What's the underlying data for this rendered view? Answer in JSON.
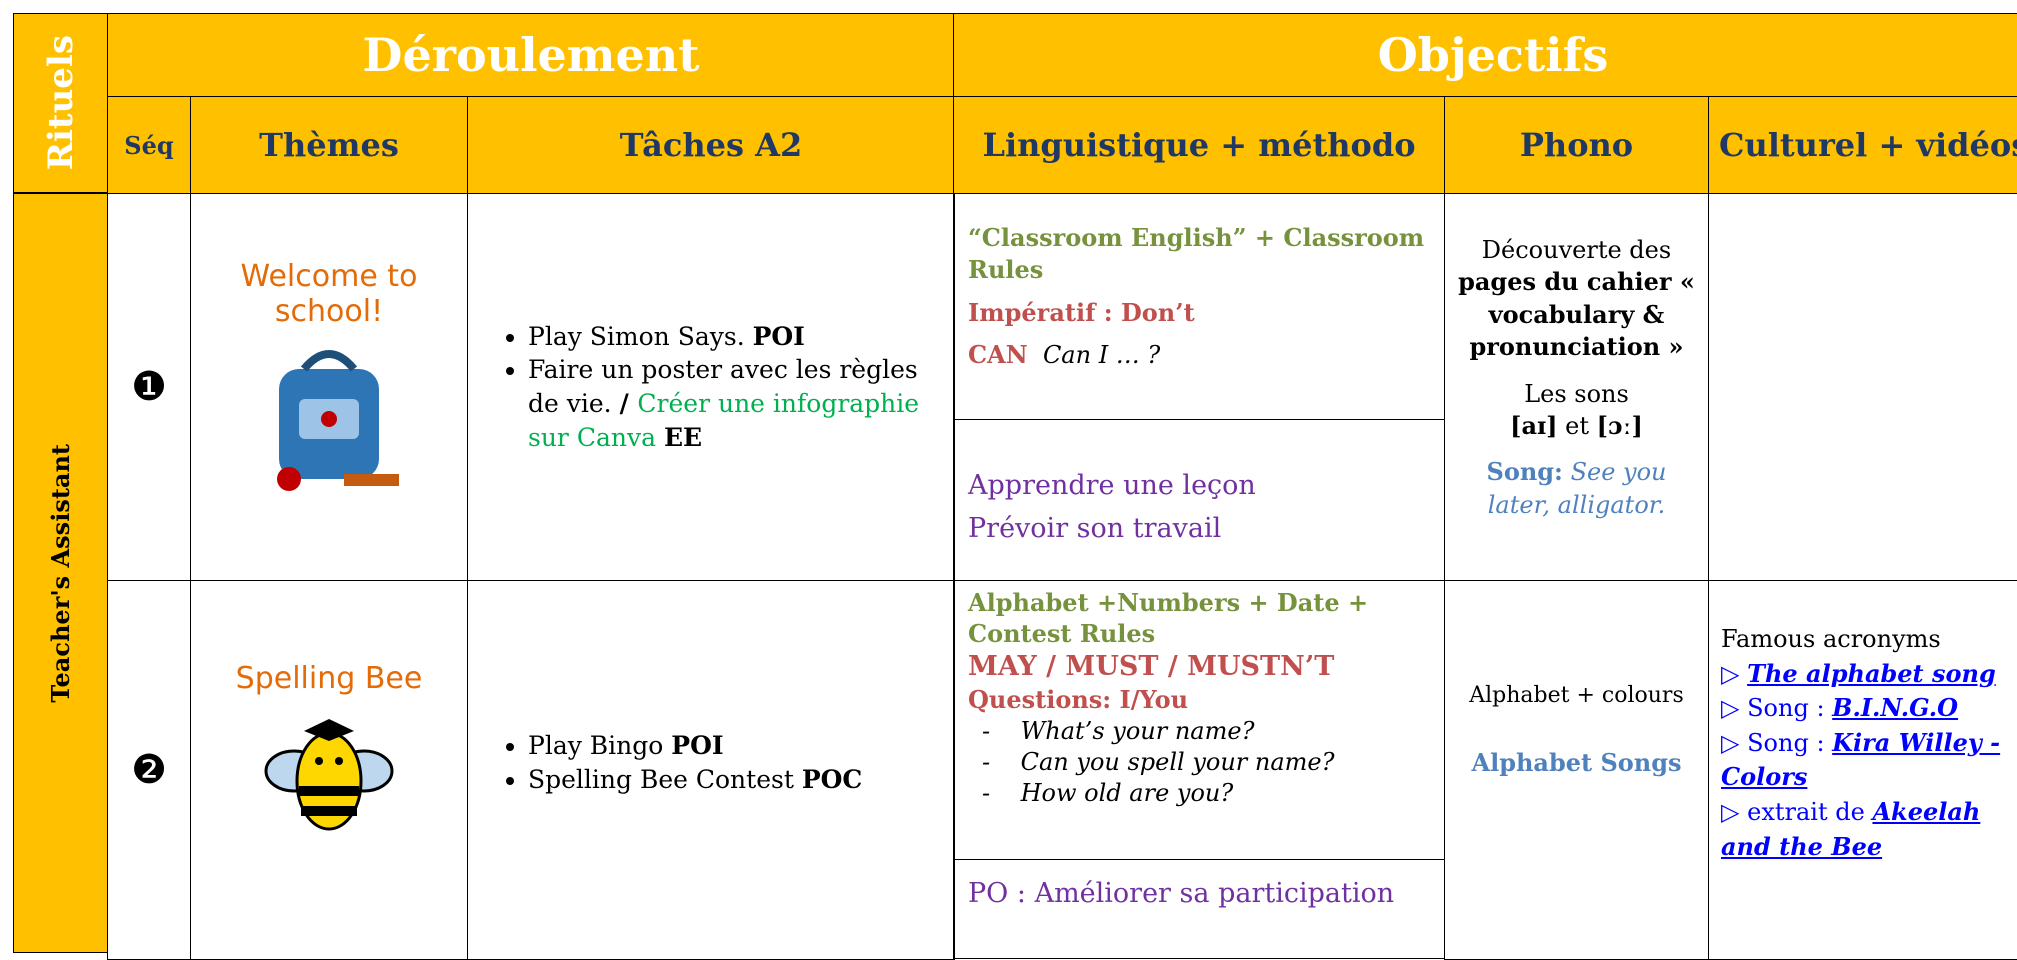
{
  "header": {
    "rituels": "Rituels",
    "deroulement": "Déroulement",
    "objectifs": "Objectifs"
  },
  "columns": [
    "Séq",
    "Thèmes",
    "Tâches A2",
    "Linguistique + méthodo",
    "Phono",
    "Culturel + vidéos"
  ],
  "side_label": "Teacher's Assistant",
  "rows": [
    {
      "seq": "❶",
      "theme": "Welcome to school!",
      "tasks": [
        [
          "Play Simon Says. ",
          "POI"
        ],
        [
          "Faire un poster avec les règles de vie. ",
          "/ ",
          "Créer une infographie sur Canva ",
          "EE"
        ]
      ],
      "linguistique": [
        "“Classroom English” + Classroom Rules",
        "Impératif : Don’t",
        "CAN",
        "Can I … ?"
      ],
      "methodo": [
        "Apprendre une leçon",
        "Prévoir son travail"
      ],
      "phono": [
        "Découverte des",
        "pages du cahier « vocabulary & pronunciation »",
        "Les sons",
        "[aɪ]",
        "et",
        "[ɔː]",
        "Song:",
        "See you later, alligator."
      ],
      "culturel": []
    },
    {
      "seq": "❷",
      "theme": "Spelling Bee",
      "tasks": [
        [
          "Play Bingo ",
          "POI"
        ],
        [
          "Spelling Bee Contest ",
          "POC"
        ]
      ],
      "linguistique": [
        "Alphabet +Numbers + Date + Contest Rules",
        "MAY / MUST / MUSTN’T",
        "Questions:  I/You",
        "What’s your name?",
        "Can you spell your name?",
        "How old are you?"
      ],
      "methodo": [
        "PO : Améliorer sa participation"
      ],
      "phono": [
        "Alphabet + colours",
        "Alphabet Songs"
      ],
      "culturel": [
        "Famous acronyms",
        "▷",
        "The alphabet song",
        "Song : ",
        "B.I.N.G.O",
        "Kira Willey - Colors",
        "extrait de",
        "Akeelah and the Bee"
      ]
    }
  ]
}
